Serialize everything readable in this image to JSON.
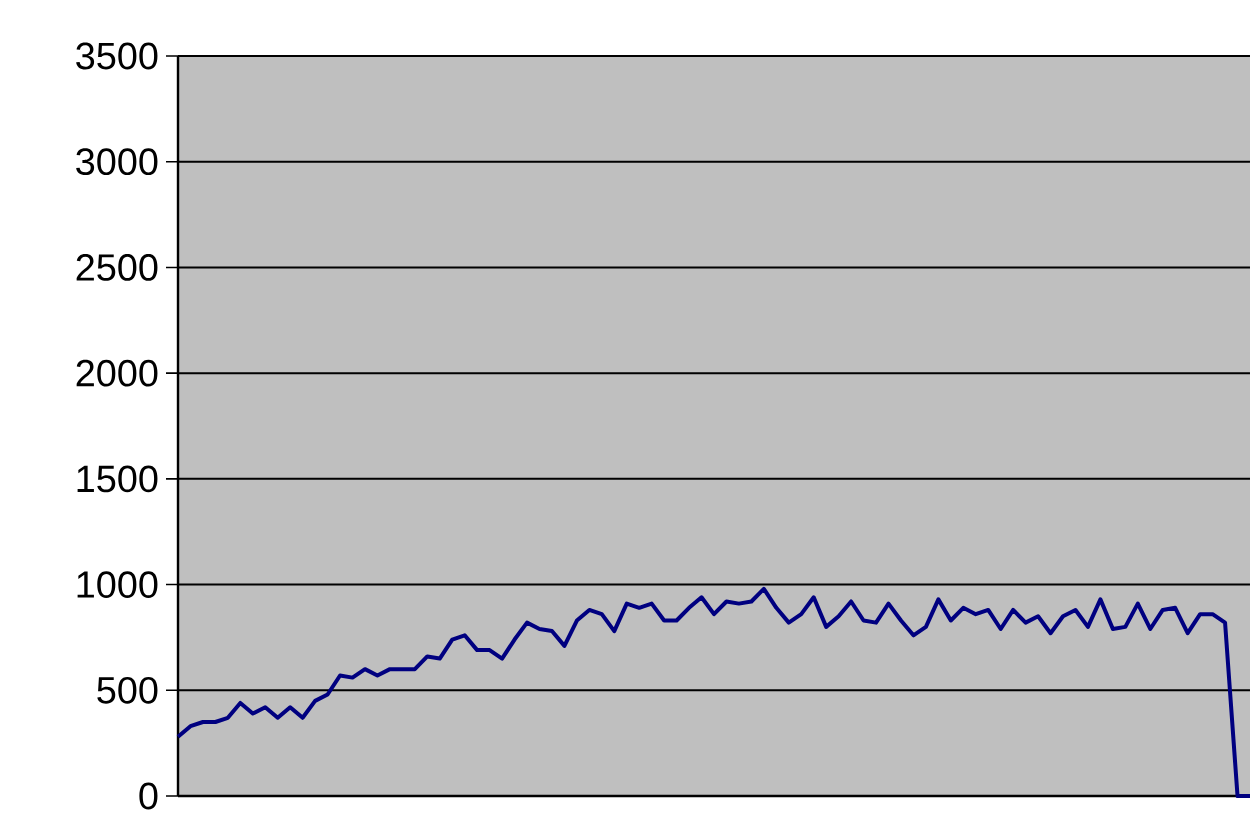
{
  "chart_data": {
    "type": "line",
    "categories": [
      null,
      null,
      null,
      null,
      null,
      null,
      null,
      null,
      null,
      null,
      null,
      null,
      null,
      null,
      null,
      null,
      null,
      null,
      null,
      null,
      null,
      null,
      null,
      null,
      null,
      null,
      null,
      null,
      null,
      null,
      null,
      null,
      null,
      null,
      null,
      null,
      null,
      null,
      null,
      null,
      null,
      null,
      null,
      null,
      null,
      null,
      null,
      null,
      null,
      null,
      null,
      null,
      null,
      null,
      null,
      null,
      null,
      null,
      null,
      null,
      null,
      null,
      null,
      null,
      null,
      null,
      null,
      null,
      null,
      null,
      null,
      null,
      null,
      null,
      null,
      null,
      null,
      null,
      null,
      null,
      null,
      null,
      null,
      null,
      null,
      null,
      null
    ],
    "series": [
      {
        "color": "#000080",
        "values": [
          280,
          330,
          350,
          350,
          370,
          440,
          390,
          420,
          370,
          420,
          370,
          450,
          480,
          570,
          560,
          600,
          570,
          600,
          600,
          600,
          660,
          650,
          740,
          760,
          690,
          690,
          650,
          740,
          820,
          790,
          780,
          710,
          830,
          880,
          860,
          780,
          910,
          890,
          910,
          830,
          830,
          890,
          940,
          860,
          920,
          910,
          920,
          980,
          890,
          820,
          860,
          940,
          800,
          850,
          920,
          830,
          820,
          910,
          830,
          760,
          800,
          930,
          830,
          890,
          860,
          880,
          790,
          880,
          820,
          850,
          770,
          850,
          880,
          800,
          930,
          790,
          800,
          910,
          790,
          880,
          890,
          770,
          860,
          860,
          820,
          0,
          0
        ]
      }
    ],
    "ylim": [
      0,
      3500
    ],
    "yticks": [
      0,
      500,
      1000,
      1500,
      2000,
      2500,
      3000,
      3500
    ],
    "grid": "y",
    "tick_labels": "y",
    "marker": "none",
    "line_style": "solid"
  }
}
